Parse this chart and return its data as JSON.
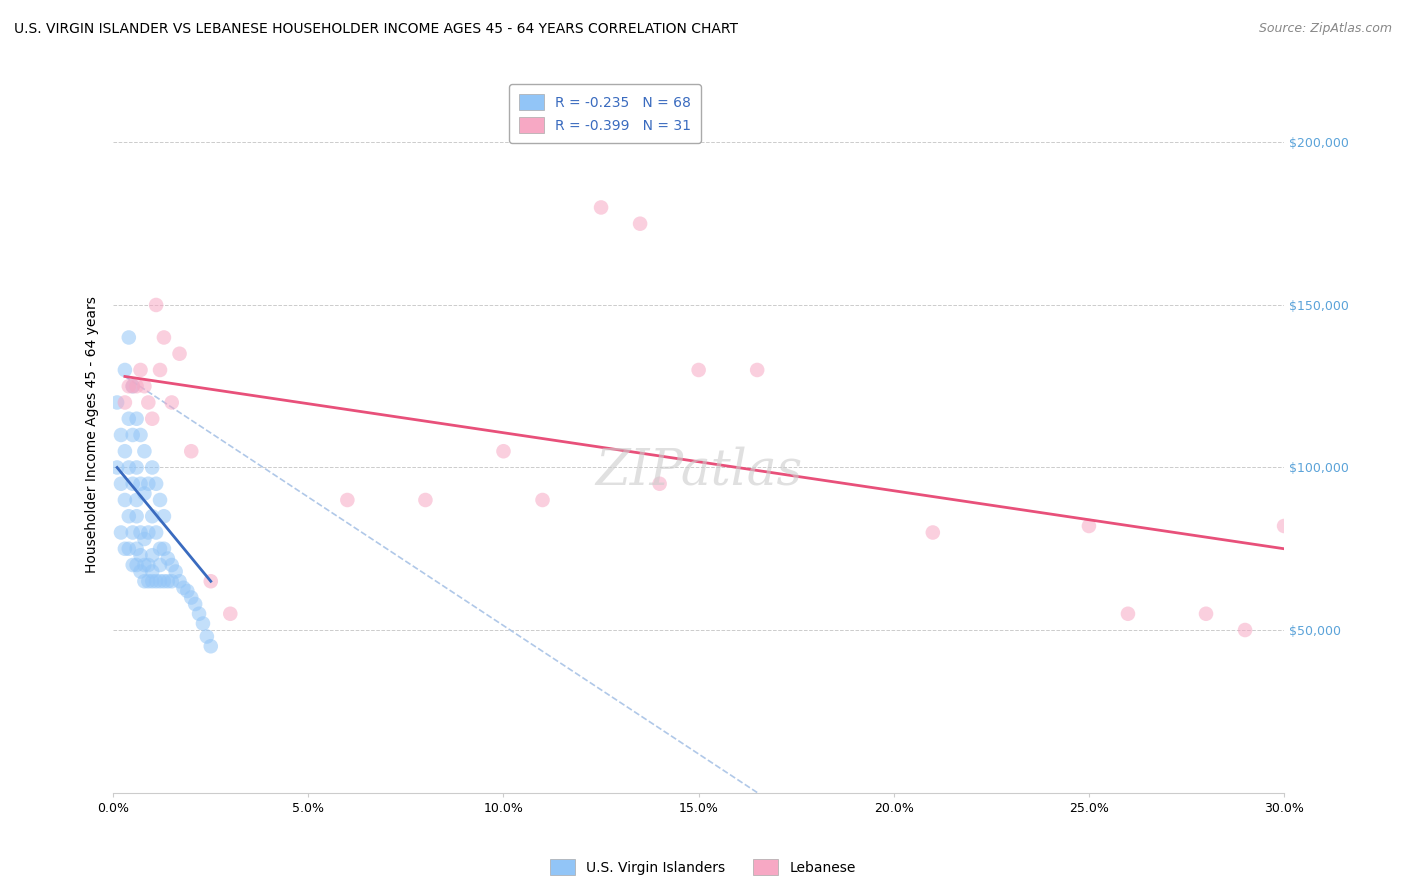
{
  "title": "U.S. VIRGIN ISLANDER VS LEBANESE HOUSEHOLDER INCOME AGES 45 - 64 YEARS CORRELATION CHART",
  "source": "Source: ZipAtlas.com",
  "ylabel": "Householder Income Ages 45 - 64 years",
  "xlabel_ticks": [
    "0.0%",
    "5.0%",
    "10.0%",
    "15.0%",
    "20.0%",
    "25.0%",
    "30.0%"
  ],
  "xlabel_vals": [
    0.0,
    0.05,
    0.1,
    0.15,
    0.2,
    0.25,
    0.3
  ],
  "ytick_labels": [
    "$50,000",
    "$100,000",
    "$150,000",
    "$200,000"
  ],
  "ytick_vals": [
    50000,
    100000,
    150000,
    200000
  ],
  "xlim": [
    0.0,
    0.3
  ],
  "ylim": [
    0,
    220000
  ],
  "blue_color": "#92c5f7",
  "pink_color": "#f7a8c4",
  "blue_line_color": "#3a6bbf",
  "pink_line_color": "#e8507a",
  "dashed_line_color": "#b0c8e8",
  "watermark": "ZIPatlas",
  "legend_r_blue": "R = -0.235",
  "legend_n_blue": "N = 68",
  "legend_r_pink": "R = -0.399",
  "legend_n_pink": "N = 31",
  "legend_label_blue": "U.S. Virgin Islanders",
  "legend_label_pink": "Lebanese",
  "blue_scatter_x": [
    0.001,
    0.001,
    0.002,
    0.002,
    0.002,
    0.003,
    0.003,
    0.003,
    0.003,
    0.004,
    0.004,
    0.004,
    0.004,
    0.004,
    0.005,
    0.005,
    0.005,
    0.005,
    0.005,
    0.006,
    0.006,
    0.006,
    0.006,
    0.006,
    0.006,
    0.007,
    0.007,
    0.007,
    0.007,
    0.007,
    0.008,
    0.008,
    0.008,
    0.008,
    0.008,
    0.009,
    0.009,
    0.009,
    0.009,
    0.01,
    0.01,
    0.01,
    0.01,
    0.01,
    0.011,
    0.011,
    0.011,
    0.012,
    0.012,
    0.012,
    0.012,
    0.013,
    0.013,
    0.013,
    0.014,
    0.014,
    0.015,
    0.015,
    0.016,
    0.017,
    0.018,
    0.019,
    0.02,
    0.021,
    0.022,
    0.023,
    0.024,
    0.025
  ],
  "blue_scatter_y": [
    100000,
    120000,
    80000,
    95000,
    110000,
    75000,
    90000,
    105000,
    130000,
    85000,
    100000,
    115000,
    75000,
    140000,
    80000,
    95000,
    110000,
    70000,
    125000,
    85000,
    100000,
    115000,
    70000,
    75000,
    90000,
    80000,
    95000,
    110000,
    68000,
    73000,
    78000,
    92000,
    105000,
    65000,
    70000,
    80000,
    95000,
    65000,
    70000,
    85000,
    100000,
    65000,
    68000,
    73000,
    80000,
    95000,
    65000,
    75000,
    90000,
    65000,
    70000,
    75000,
    85000,
    65000,
    72000,
    65000,
    70000,
    65000,
    68000,
    65000,
    63000,
    62000,
    60000,
    58000,
    55000,
    52000,
    48000,
    45000
  ],
  "pink_scatter_x": [
    0.003,
    0.004,
    0.005,
    0.006,
    0.007,
    0.008,
    0.009,
    0.01,
    0.011,
    0.012,
    0.013,
    0.015,
    0.017,
    0.02,
    0.025,
    0.03,
    0.06,
    0.08,
    0.1,
    0.11,
    0.125,
    0.135,
    0.15,
    0.165,
    0.21,
    0.25,
    0.26,
    0.28,
    0.29,
    0.3,
    0.14
  ],
  "pink_scatter_y": [
    120000,
    125000,
    125000,
    125000,
    130000,
    125000,
    120000,
    115000,
    150000,
    130000,
    140000,
    120000,
    135000,
    105000,
    65000,
    55000,
    90000,
    90000,
    105000,
    90000,
    180000,
    175000,
    130000,
    130000,
    80000,
    82000,
    55000,
    55000,
    50000,
    82000,
    95000
  ],
  "blue_line_x": [
    0.001,
    0.025
  ],
  "blue_line_y": [
    100000,
    65000
  ],
  "pink_line_x": [
    0.003,
    0.3
  ],
  "pink_line_y": [
    128000,
    75000
  ],
  "dashed_line_x": [
    0.003,
    0.165
  ],
  "dashed_line_y": [
    128000,
    0
  ],
  "title_fontsize": 10,
  "source_fontsize": 9,
  "ylabel_fontsize": 10,
  "tick_fontsize": 9,
  "legend_fontsize": 10,
  "watermark_fontsize": 36,
  "scatter_size": 110,
  "scatter_alpha": 0.55,
  "background_color": "#ffffff",
  "grid_color": "#cccccc"
}
